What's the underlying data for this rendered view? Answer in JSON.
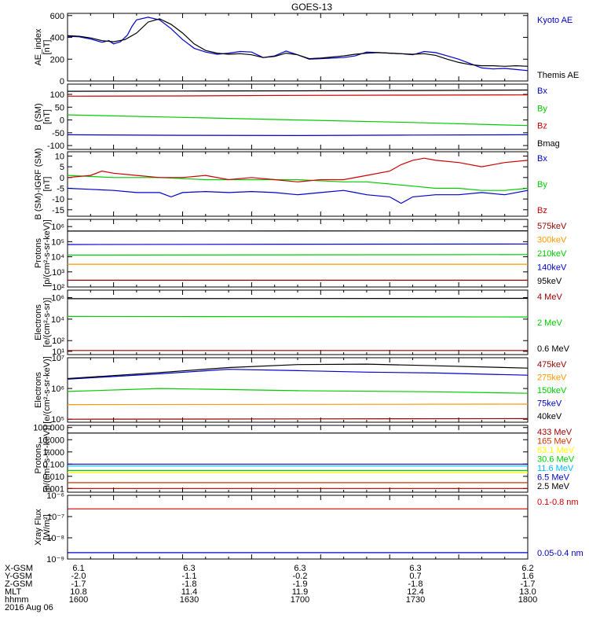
{
  "title": "GOES-13",
  "chart_data": [
    {
      "type": "line",
      "ylabel": "AE_index\n[nT]",
      "yscale": "linear",
      "ylim": [
        0,
        620
      ],
      "yticks": [
        0,
        200,
        400,
        600
      ],
      "xlim": [
        1600,
        1800
      ],
      "series": [
        {
          "name": "Kyoto AE",
          "color": "#0000cc",
          "x": [
            1600,
            1605,
            1610,
            1615,
            1618,
            1620,
            1623,
            1626,
            1628,
            1630,
            1635,
            1640,
            1645,
            1650,
            1655,
            1660,
            1665,
            1670,
            1675,
            1680,
            1685,
            1690,
            1695,
            1700,
            1705,
            1710,
            1715,
            1720,
            1725,
            1730,
            1735,
            1740,
            1745,
            1750,
            1755,
            1760,
            1765,
            1770,
            1775,
            1780,
            1785,
            1790,
            1795,
            1800
          ],
          "y": [
            410,
            405,
            385,
            355,
            370,
            340,
            360,
            420,
            500,
            560,
            585,
            560,
            480,
            380,
            300,
            265,
            245,
            255,
            270,
            265,
            215,
            230,
            275,
            240,
            200,
            205,
            210,
            215,
            230,
            265,
            260,
            255,
            250,
            240,
            270,
            260,
            230,
            200,
            160,
            120,
            110,
            115,
            105,
            95
          ]
        },
        {
          "name": "Themis AE",
          "color": "#000000",
          "x": [
            1600,
            1605,
            1610,
            1615,
            1620,
            1625,
            1630,
            1635,
            1640,
            1645,
            1650,
            1655,
            1660,
            1665,
            1670,
            1675,
            1680,
            1685,
            1690,
            1695,
            1700,
            1705,
            1710,
            1715,
            1720,
            1725,
            1730,
            1735,
            1740,
            1745,
            1750,
            1755,
            1760,
            1765,
            1770,
            1775,
            1780,
            1785,
            1790,
            1795,
            1800
          ],
          "y": [
            415,
            410,
            395,
            370,
            360,
            380,
            440,
            540,
            570,
            520,
            440,
            340,
            280,
            255,
            245,
            250,
            240,
            215,
            225,
            255,
            240,
            205,
            210,
            220,
            230,
            245,
            255,
            260,
            255,
            250,
            245,
            250,
            235,
            200,
            170,
            150,
            140,
            140,
            135,
            140,
            135
          ]
        }
      ]
    },
    {
      "type": "line",
      "ylabel": "B (SM)\n[nT]",
      "yscale": "linear",
      "ylim": [
        -115,
        140
      ],
      "yticks": [
        -100,
        -50,
        0,
        50,
        100
      ],
      "xlim": [
        1600,
        1800
      ],
      "series": [
        {
          "name": "Bx",
          "color": "#0000cc",
          "x": [
            1600,
            1650,
            1700,
            1750,
            1800
          ],
          "y": [
            -58,
            -60,
            -61,
            -59,
            -58
          ]
        },
        {
          "name": "By",
          "color": "#00cc00",
          "x": [
            1600,
            1650,
            1700,
            1750,
            1800
          ],
          "y": [
            20,
            10,
            0,
            -10,
            -22
          ]
        },
        {
          "name": "Bz",
          "color": "#cc0000",
          "x": [
            1600,
            1650,
            1700,
            1750,
            1800
          ],
          "y": [
            93,
            94,
            96,
            97,
            98
          ]
        },
        {
          "name": "Bmag",
          "color": "#000000",
          "x": [
            1600,
            1650,
            1700,
            1750,
            1800
          ],
          "y": [
            112,
            113,
            114,
            115,
            117
          ]
        }
      ]
    },
    {
      "type": "line",
      "ylabel": "B (SM)-IGRF (SM)\n[nT]",
      "yscale": "linear",
      "ylim": [
        -18,
        12
      ],
      "yticks": [
        -15,
        -10,
        -5,
        0,
        5,
        10
      ],
      "xlim": [
        1600,
        1800
      ],
      "series": [
        {
          "name": "Bx",
          "color": "#0000cc",
          "x": [
            1600,
            1610,
            1620,
            1630,
            1640,
            1645,
            1650,
            1660,
            1670,
            1680,
            1690,
            1700,
            1710,
            1720,
            1725,
            1730,
            1740,
            1745,
            1750,
            1760,
            1770,
            1780,
            1790,
            1800
          ],
          "y": [
            -5,
            -5.5,
            -6,
            -7,
            -7,
            -9,
            -7,
            -6.5,
            -7,
            -6.5,
            -7,
            -8,
            -7,
            -6,
            -7,
            -8,
            -9,
            -12,
            -9,
            -8,
            -8,
            -7,
            -8,
            -6
          ]
        },
        {
          "name": "By",
          "color": "#00cc00",
          "x": [
            1600,
            1620,
            1640,
            1660,
            1680,
            1700,
            1720,
            1730,
            1740,
            1750,
            1760,
            1770,
            1780,
            1790,
            1800
          ],
          "y": [
            1,
            0,
            0,
            -1,
            -1,
            -1,
            -2,
            -2,
            -3,
            -4,
            -5,
            -5,
            -6,
            -6,
            -5
          ]
        },
        {
          "name": "Bz",
          "color": "#cc0000",
          "x": [
            1600,
            1610,
            1615,
            1620,
            1630,
            1640,
            1650,
            1660,
            1670,
            1680,
            1690,
            1700,
            1710,
            1720,
            1730,
            1740,
            1745,
            1750,
            1755,
            1760,
            1770,
            1780,
            1790,
            1800
          ],
          "y": [
            0,
            1,
            3,
            2,
            1,
            0,
            0,
            1,
            -1,
            0,
            -1,
            -2,
            -1,
            -1,
            1,
            3,
            6,
            8,
            9,
            8,
            7,
            5,
            7,
            8
          ]
        }
      ]
    },
    {
      "type": "line",
      "ylabel": "Protons\n[p/(cm²-s-sr-keV)]",
      "yscale": "log",
      "ylim": [
        100,
        3000000
      ],
      "yticks": [
        100,
        1000,
        10000,
        100000,
        1000000
      ],
      "ytick_labels": [
        "10²",
        "10³",
        "10⁴",
        "10⁵",
        "10⁶"
      ],
      "xlim": [
        1600,
        1800
      ],
      "series": [
        {
          "name": "575keV",
          "color": "#990000",
          "x": [
            1600,
            1800
          ],
          "y": [
            280,
            280
          ]
        },
        {
          "name": "300keV",
          "color": "#ff9900",
          "x": [
            1600,
            1800
          ],
          "y": [
            3200,
            3200
          ]
        },
        {
          "name": "210keV",
          "color": "#00cc00",
          "x": [
            1600,
            1800
          ],
          "y": [
            13000,
            14000
          ]
        },
        {
          "name": "140keV",
          "color": "#0000cc",
          "x": [
            1600,
            1800
          ],
          "y": [
            65000,
            70000
          ]
        },
        {
          "name": "95keV",
          "color": "#000000",
          "x": [
            1600,
            1800
          ],
          "y": [
            500000,
            520000
          ]
        }
      ]
    },
    {
      "type": "line",
      "ylabel": "Electrons\n[e/(cm²-s-sr)]",
      "yscale": "log",
      "ylim": [
        5,
        5000000
      ],
      "yticks": [
        10,
        100,
        10000,
        1000000
      ],
      "ytick_labels": [
        "10¹",
        "10²",
        "10⁴",
        "10⁶"
      ],
      "xlim": [
        1600,
        1800
      ],
      "series": [
        {
          "name": "4 MeV",
          "color": "#990000",
          "x": [
            1600,
            1800
          ],
          "y": [
            12,
            12
          ]
        },
        {
          "name": "2 MeV",
          "color": "#00cc00",
          "x": [
            1600,
            1800
          ],
          "y": [
            18000,
            16000
          ]
        },
        {
          "name": "0.6 MeV",
          "color": "#000000",
          "x": [
            1600,
            1800
          ],
          "y": [
            800000,
            850000
          ]
        }
      ]
    },
    {
      "type": "line",
      "ylabel": "Electrons\n[e/(cm²-s-sr-keV)]",
      "yscale": "log",
      "ylim": [
        80000,
        10000000
      ],
      "yticks": [
        100000,
        1000000,
        10000000
      ],
      "ytick_labels": [
        "10⁵",
        "10⁶",
        "10⁷"
      ],
      "xlim": [
        1600,
        1800
      ],
      "series": [
        {
          "name": "475keV",
          "color": "#990000",
          "x": [
            1600,
            1800
          ],
          "y": [
            100000,
            105000
          ]
        },
        {
          "name": "275keV",
          "color": "#ff9900",
          "x": [
            1600,
            1800
          ],
          "y": [
            300000,
            310000
          ]
        },
        {
          "name": "150keV",
          "color": "#00cc00",
          "x": [
            1600,
            1640,
            1700,
            1760,
            1800
          ],
          "y": [
            800000,
            1000000,
            850000,
            780000,
            700000
          ]
        },
        {
          "name": "75keV",
          "color": "#0000cc",
          "x": [
            1600,
            1640,
            1670,
            1700,
            1730,
            1760,
            1800
          ],
          "y": [
            2000000,
            3000000,
            4200000,
            3800000,
            3400000,
            3200000,
            2700000
          ]
        },
        {
          "name": "40keV",
          "color": "#000000",
          "x": [
            1600,
            1640,
            1670,
            1700,
            1730,
            1760,
            1800
          ],
          "y": [
            2100000,
            3300000,
            4800000,
            6000000,
            6200000,
            5500000,
            4600000
          ]
        }
      ]
    },
    {
      "type": "line",
      "ylabel": "Protons\n[p/(cm²-s-sr-keV)]",
      "yscale": "log",
      "ylim": [
        0.0005,
        150
      ],
      "yticks": [
        0.001,
        0.01,
        0.1,
        1,
        10,
        100
      ],
      "ytick_labels": [
        "0.001",
        "0.010",
        "0.100",
        "1.000",
        "10.000",
        "100.000"
      ],
      "xlim": [
        1600,
        1800
      ],
      "series": [
        {
          "name": "433 MeV",
          "color": "#990000",
          "x": [
            1600,
            1800
          ],
          "y": [
            0.001,
            0.001
          ]
        },
        {
          "name": "165 MeV",
          "color": "#cc3300",
          "x": [
            1600,
            1800
          ],
          "y": [
            0.003,
            0.003
          ]
        },
        {
          "name": "63.1 MeV",
          "color": "#ffff00",
          "x": [
            1600,
            1800
          ],
          "y": [
            0.02,
            0.02
          ]
        },
        {
          "name": "30.6 MeV",
          "color": "#00cc00",
          "x": [
            1600,
            1800
          ],
          "y": [
            0.03,
            0.03
          ]
        },
        {
          "name": "11.6 MeV",
          "color": "#00bbff",
          "x": [
            1600,
            1800
          ],
          "y": [
            0.07,
            0.07
          ]
        },
        {
          "name": "6.5 MeV",
          "color": "#0000cc",
          "x": [
            1600,
            1800
          ],
          "y": [
            0.1,
            0.1
          ]
        },
        {
          "name": "2.5 MeV",
          "color": "#000000",
          "x": [
            1600,
            1800
          ],
          "y": [
            35,
            35
          ]
        }
      ]
    },
    {
      "type": "line",
      "ylabel": "Xray Flux\n[W/m²]",
      "yscale": "log",
      "ylim": [
        1e-09,
        1e-06
      ],
      "yticks": [
        1e-09,
        1e-08,
        1e-07,
        1e-06
      ],
      "ytick_labels": [
        "10⁻⁹",
        "10⁻⁸",
        "10⁻⁷",
        "10⁻⁶"
      ],
      "xlim": [
        1600,
        1800
      ],
      "series": [
        {
          "name": "0.1-0.8 nm",
          "color": "#cc0000",
          "x": [
            1600,
            1800
          ],
          "y": [
            2.3e-07,
            2.3e-07
          ]
        },
        {
          "name": "0.05-0.4 nm",
          "color": "#0000cc",
          "x": [
            1600,
            1800
          ],
          "y": [
            2e-09,
            2e-09
          ]
        }
      ]
    }
  ],
  "x_axis": {
    "rows": [
      {
        "label": "X-GSM",
        "values": [
          "6.1",
          "6.3",
          "6.3",
          "6.3",
          "6.2"
        ]
      },
      {
        "label": "Y-GSM",
        "values": [
          "-2.0",
          "-1.1",
          "-0.2",
          "0.7",
          "1.6"
        ]
      },
      {
        "label": "Z-GSM",
        "values": [
          "-1.7",
          "-1.8",
          "-1.9",
          "-1.8",
          "-1.7"
        ]
      },
      {
        "label": "MLT",
        "values": [
          "10.8",
          "11.4",
          "11.9",
          "12.4",
          "13.0"
        ]
      },
      {
        "label": "hhmm",
        "values": [
          "1600",
          "1630",
          "1700",
          "1730",
          "1800"
        ]
      }
    ],
    "date": "2016 Aug 06"
  }
}
